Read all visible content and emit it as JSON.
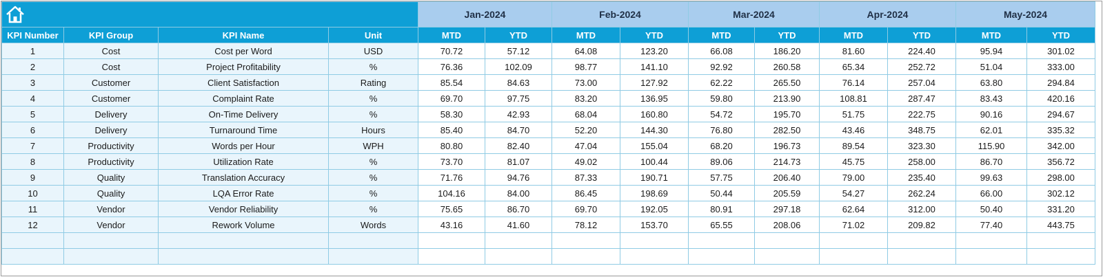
{
  "header": {
    "months": [
      "Jan-2024",
      "Feb-2024",
      "Mar-2024",
      "Apr-2024",
      "May-2024"
    ],
    "columns": [
      "KPI Number",
      "KPI Group",
      "KPI Name",
      "Unit",
      "MTD",
      "YTD",
      "MTD",
      "YTD",
      "MTD",
      "YTD",
      "MTD",
      "YTD",
      "MTD",
      "YTD"
    ]
  },
  "table": {
    "rows": [
      [
        1,
        "Cost",
        "Cost per Word",
        "USD",
        "70.72",
        "57.12",
        "64.08",
        "123.20",
        "66.08",
        "186.20",
        "81.60",
        "224.40",
        "95.94",
        "301.02"
      ],
      [
        2,
        "Cost",
        "Project Profitability",
        "%",
        "76.36",
        "102.09",
        "98.77",
        "141.10",
        "92.92",
        "260.58",
        "65.34",
        "252.72",
        "51.04",
        "333.00"
      ],
      [
        3,
        "Customer",
        "Client Satisfaction",
        "Rating",
        "85.54",
        "84.63",
        "73.00",
        "127.92",
        "62.22",
        "265.50",
        "76.14",
        "257.04",
        "63.80",
        "294.84"
      ],
      [
        4,
        "Customer",
        "Complaint Rate",
        "%",
        "69.70",
        "97.75",
        "83.20",
        "136.95",
        "59.80",
        "213.90",
        "108.81",
        "287.47",
        "83.43",
        "420.16"
      ],
      [
        5,
        "Delivery",
        "On-Time Delivery",
        "%",
        "58.30",
        "42.93",
        "68.04",
        "160.80",
        "54.72",
        "195.70",
        "51.75",
        "222.75",
        "90.16",
        "294.67"
      ],
      [
        6,
        "Delivery",
        "Turnaround Time",
        "Hours",
        "85.40",
        "84.70",
        "52.20",
        "144.30",
        "76.80",
        "282.50",
        "43.46",
        "348.75",
        "62.01",
        "335.32"
      ],
      [
        7,
        "Productivity",
        "Words per Hour",
        "WPH",
        "80.80",
        "82.40",
        "47.04",
        "155.04",
        "68.20",
        "196.73",
        "89.54",
        "323.30",
        "115.90",
        "342.00"
      ],
      [
        8,
        "Productivity",
        "Utilization Rate",
        "%",
        "73.70",
        "81.07",
        "49.02",
        "100.44",
        "89.06",
        "214.73",
        "45.75",
        "258.00",
        "86.70",
        "356.72"
      ],
      [
        9,
        "Quality",
        "Translation Accuracy",
        "%",
        "71.76",
        "94.76",
        "87.33",
        "190.71",
        "57.75",
        "206.40",
        "79.00",
        "235.40",
        "99.63",
        "298.00"
      ],
      [
        10,
        "Quality",
        "LQA Error Rate",
        "%",
        "104.16",
        "84.00",
        "86.45",
        "198.69",
        "50.44",
        "205.59",
        "54.27",
        "262.24",
        "66.00",
        "302.12"
      ],
      [
        11,
        "Vendor",
        "Vendor Reliability",
        "%",
        "75.65",
        "86.70",
        "69.70",
        "192.05",
        "80.91",
        "297.18",
        "62.64",
        "312.00",
        "50.40",
        "331.20"
      ],
      [
        12,
        "Vendor",
        "Rework Volume",
        "Words",
        "43.16",
        "41.60",
        "78.12",
        "153.70",
        "65.55",
        "208.06",
        "71.02",
        "209.82",
        "77.40",
        "443.75"
      ]
    ]
  }
}
